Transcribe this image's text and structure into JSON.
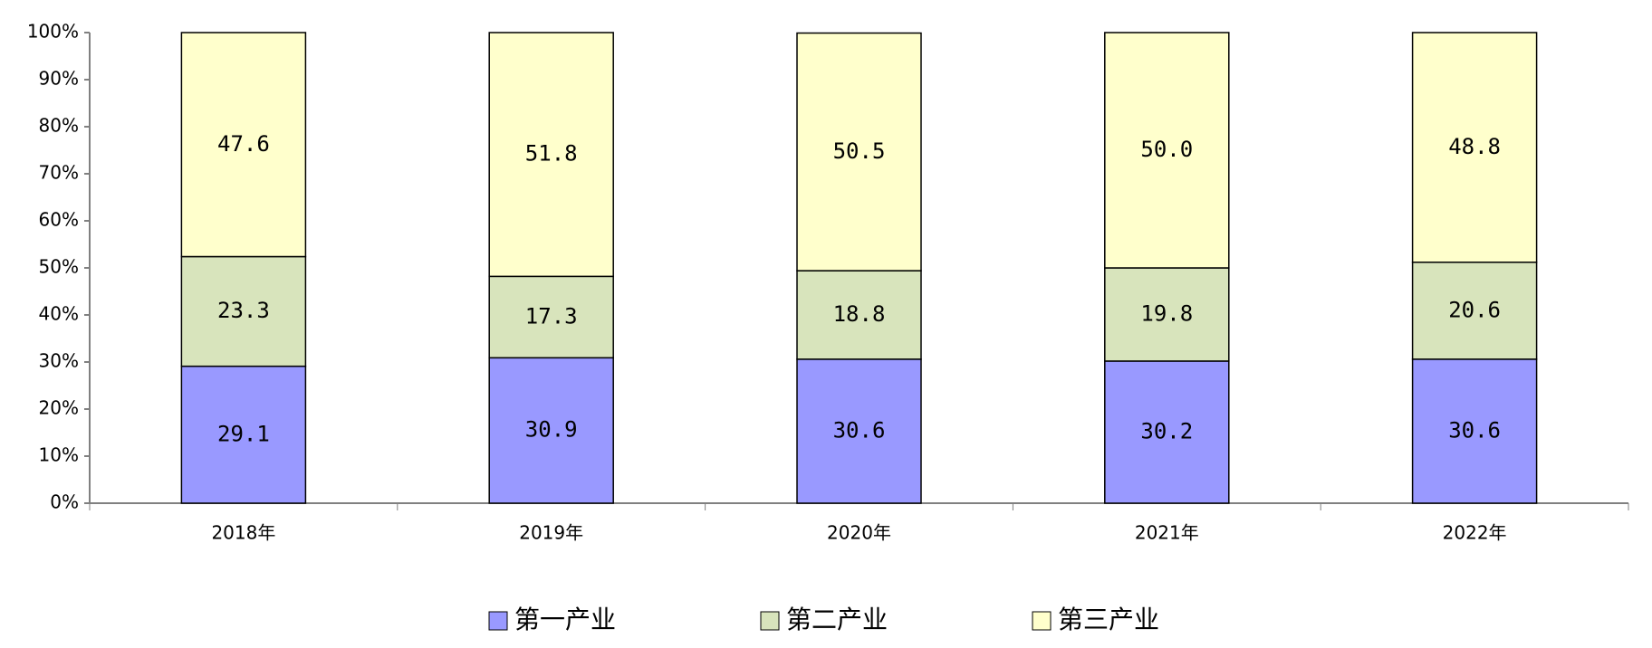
{
  "chart_data": {
    "type": "stacked_bar",
    "categories": [
      "2018年",
      "2019年",
      "2020年",
      "2021年",
      "2022年"
    ],
    "series": [
      {
        "name": "第一产业",
        "color": "#9999ff",
        "values": [
          29.1,
          30.9,
          30.6,
          30.2,
          30.6
        ],
        "value_labels": [
          "29.1",
          "30.9",
          "30.6",
          "30.2",
          "30.6"
        ]
      },
      {
        "name": "第二产业",
        "color": "#d8e4bc",
        "values": [
          23.3,
          17.3,
          18.8,
          19.8,
          20.6
        ],
        "value_labels": [
          "23.3",
          "17.3",
          "18.8",
          "19.8",
          "20.6"
        ]
      },
      {
        "name": "第三产业",
        "color": "#ffffcc",
        "values": [
          47.6,
          51.8,
          50.5,
          50.0,
          48.8
        ],
        "value_labels": [
          "47.6",
          "51.8",
          "50.5",
          "50.0",
          "48.8"
        ]
      }
    ],
    "ylim": [
      0,
      100
    ],
    "yticks": [
      {
        "value": 0,
        "label": "0%"
      },
      {
        "value": 10,
        "label": "10%"
      },
      {
        "value": 20,
        "label": "20%"
      },
      {
        "value": 30,
        "label": "30%"
      },
      {
        "value": 40,
        "label": "40%"
      },
      {
        "value": 50,
        "label": "50%"
      },
      {
        "value": 60,
        "label": "60%"
      },
      {
        "value": 70,
        "label": "70%"
      },
      {
        "value": 80,
        "label": "80%"
      },
      {
        "value": 90,
        "label": "90%"
      },
      {
        "value": 100,
        "label": "100%"
      }
    ],
    "grid": false,
    "legend": "bottom"
  }
}
